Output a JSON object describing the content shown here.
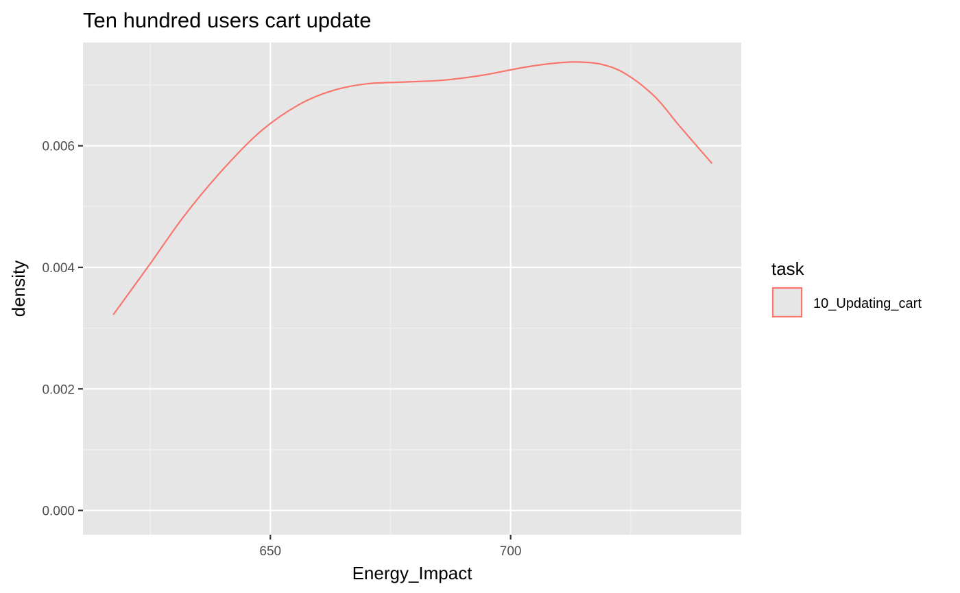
{
  "chart_data": {
    "type": "line",
    "title": "Ten hundred users cart update",
    "xlabel": "Energy_Impact",
    "ylabel": "density",
    "xlim": [
      611,
      748
    ],
    "ylim": [
      -0.0004,
      0.0077
    ],
    "x_ticks": [
      650,
      700
    ],
    "x_tick_labels": [
      "650",
      "700"
    ],
    "y_ticks": [
      0.0,
      0.002,
      0.004,
      0.006
    ],
    "y_tick_labels": [
      "0.000",
      "0.002",
      "0.004",
      "0.006"
    ],
    "grid": true,
    "legend": {
      "title": "task",
      "placement": "right"
    },
    "series": [
      {
        "name": "10_Updating_cart",
        "color": "#F8766D",
        "x": [
          617.3,
          625,
          632,
          640,
          648,
          656,
          663,
          670,
          678,
          686,
          694,
          702,
          708,
          713.5,
          719,
          724,
          730,
          735,
          741.9
        ],
        "y": [
          0.00322,
          0.00406,
          0.00484,
          0.0056,
          0.00624,
          0.00668,
          0.00691,
          0.00702,
          0.00705,
          0.00708,
          0.00716,
          0.00728,
          0.00735,
          0.00738,
          0.00734,
          0.00718,
          0.00681,
          0.00634,
          0.00571
        ]
      }
    ]
  },
  "colors": {
    "panel_background": "#E6E6E6",
    "grid_major": "#FFFFFF",
    "grid_minor": "#F2F2F2",
    "series": "#F8766D"
  }
}
